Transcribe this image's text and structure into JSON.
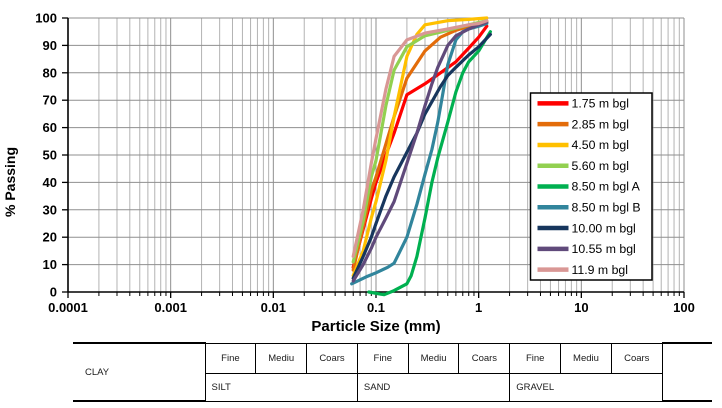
{
  "chart_data": {
    "type": "line",
    "x_scale": "log",
    "xlabel": "Particle Size (mm)",
    "ylabel": "% Passing",
    "xlim": [
      0.0001,
      100
    ],
    "ylim": [
      0,
      100
    ],
    "grid": "horizontal-major + vertical-log-minor",
    "legend_position": "inside-right",
    "x_ticks": {
      "labels": [
        "0.0001",
        "0.001",
        "0.01",
        "0.1",
        "1",
        "10",
        "100"
      ],
      "values": [
        0.0001,
        0.001,
        0.01,
        0.1,
        1,
        10,
        100
      ]
    },
    "y_ticks": [
      0,
      10,
      20,
      30,
      40,
      50,
      60,
      70,
      80,
      90,
      100
    ],
    "series": [
      {
        "name": "1.75 m bgl",
        "color": "#FF0000",
        "points": [
          [
            0.06,
            9
          ],
          [
            0.075,
            23
          ],
          [
            0.09,
            34
          ],
          [
            0.1,
            40
          ],
          [
            0.125,
            50
          ],
          [
            0.15,
            58
          ],
          [
            0.2,
            72
          ],
          [
            0.3,
            76
          ],
          [
            0.425,
            80
          ],
          [
            0.6,
            84
          ],
          [
            0.8,
            89
          ],
          [
            1.0,
            93
          ],
          [
            1.2,
            97
          ]
        ]
      },
      {
        "name": "2.85 m bgl",
        "color": "#E36C0A",
        "points": [
          [
            0.06,
            8
          ],
          [
            0.075,
            24
          ],
          [
            0.09,
            37
          ],
          [
            0.1,
            42
          ],
          [
            0.125,
            54
          ],
          [
            0.15,
            64
          ],
          [
            0.2,
            78
          ],
          [
            0.3,
            88
          ],
          [
            0.425,
            93
          ],
          [
            0.6,
            95.5
          ],
          [
            0.8,
            97
          ],
          [
            1.2,
            98.5
          ]
        ]
      },
      {
        "name": "4.50 m bgl",
        "color": "#FFC000",
        "points": [
          [
            0.06,
            6
          ],
          [
            0.075,
            15
          ],
          [
            0.09,
            27
          ],
          [
            0.1,
            33
          ],
          [
            0.125,
            48
          ],
          [
            0.15,
            64
          ],
          [
            0.2,
            86
          ],
          [
            0.25,
            94
          ],
          [
            0.3,
            97.5
          ],
          [
            0.5,
            99
          ],
          [
            0.8,
            99.5
          ],
          [
            1.2,
            100
          ]
        ]
      },
      {
        "name": "5.60 m bgl",
        "color": "#92D050",
        "points": [
          [
            0.06,
            11
          ],
          [
            0.075,
            26
          ],
          [
            0.09,
            42
          ],
          [
            0.1,
            48
          ],
          [
            0.125,
            68
          ],
          [
            0.15,
            81
          ],
          [
            0.2,
            89.5
          ],
          [
            0.3,
            93.5
          ],
          [
            0.5,
            95.5
          ],
          [
            0.8,
            97.5
          ],
          [
            1.2,
            99
          ]
        ]
      },
      {
        "name": "8.50 m bgl A",
        "color": "#00B050",
        "points": [
          [
            0.085,
            0
          ],
          [
            0.12,
            -1
          ],
          [
            0.15,
            0.5
          ],
          [
            0.2,
            3
          ],
          [
            0.22,
            6
          ],
          [
            0.25,
            13
          ],
          [
            0.3,
            27
          ],
          [
            0.35,
            40
          ],
          [
            0.4,
            49
          ],
          [
            0.5,
            62
          ],
          [
            0.6,
            73
          ],
          [
            0.7,
            80
          ],
          [
            0.8,
            84
          ],
          [
            1.0,
            88
          ],
          [
            1.3,
            95
          ]
        ]
      },
      {
        "name": "8.50 m bgl B",
        "color": "#31859C",
        "points": [
          [
            0.058,
            3
          ],
          [
            0.08,
            5.5
          ],
          [
            0.1,
            7
          ],
          [
            0.13,
            9
          ],
          [
            0.15,
            10.5
          ],
          [
            0.2,
            20
          ],
          [
            0.25,
            32
          ],
          [
            0.3,
            43
          ],
          [
            0.35,
            52
          ],
          [
            0.4,
            62
          ],
          [
            0.45,
            73
          ],
          [
            0.5,
            83
          ],
          [
            0.6,
            92
          ],
          [
            0.7,
            95
          ],
          [
            0.8,
            96
          ],
          [
            1.0,
            97
          ],
          [
            1.2,
            98
          ]
        ]
      },
      {
        "name": "10.00 m bgl",
        "color": "#17365D",
        "points": [
          [
            0.06,
            5
          ],
          [
            0.075,
            13
          ],
          [
            0.09,
            20
          ],
          [
            0.1,
            25
          ],
          [
            0.125,
            35
          ],
          [
            0.15,
            42
          ],
          [
            0.2,
            51
          ],
          [
            0.25,
            58
          ],
          [
            0.3,
            65
          ],
          [
            0.425,
            75
          ],
          [
            0.5,
            79
          ],
          [
            0.6,
            82
          ],
          [
            0.8,
            86.5
          ],
          [
            1.0,
            89.5
          ],
          [
            1.3,
            94
          ]
        ]
      },
      {
        "name": "10.55 m bgl",
        "color": "#604A7B",
        "points": [
          [
            0.06,
            4
          ],
          [
            0.075,
            10
          ],
          [
            0.09,
            16
          ],
          [
            0.1,
            20
          ],
          [
            0.125,
            27
          ],
          [
            0.15,
            33
          ],
          [
            0.2,
            47
          ],
          [
            0.25,
            58
          ],
          [
            0.3,
            68
          ],
          [
            0.35,
            76
          ],
          [
            0.4,
            82
          ],
          [
            0.5,
            90
          ],
          [
            0.6,
            93.5
          ],
          [
            0.8,
            96
          ],
          [
            1.0,
            97.5
          ],
          [
            1.2,
            98.5
          ]
        ]
      },
      {
        "name": "11.9 m bgl",
        "color": "#D99795",
        "points": [
          [
            0.06,
            13
          ],
          [
            0.075,
            30
          ],
          [
            0.09,
            47
          ],
          [
            0.1,
            56
          ],
          [
            0.125,
            74
          ],
          [
            0.15,
            86
          ],
          [
            0.2,
            92
          ],
          [
            0.3,
            94.5
          ],
          [
            0.5,
            96
          ],
          [
            0.8,
            97.5
          ],
          [
            1.0,
            98
          ],
          [
            1.2,
            99
          ]
        ]
      }
    ]
  },
  "classification_table": {
    "clay_label": "CLAY",
    "size_labels": [
      "Fine",
      "Mediu",
      "Coars",
      "Fine",
      "Mediu",
      "Coars",
      "Fine",
      "Mediu",
      "Coars"
    ],
    "group_labels": [
      "SILT",
      "SAND",
      "GRAVEL"
    ]
  },
  "colors": {
    "axis": "#000000",
    "grid_major": "#8f8f8f",
    "grid_minor": "#b3b3b3",
    "legend_border": "#000000",
    "legend_fill": "#ffffff"
  }
}
